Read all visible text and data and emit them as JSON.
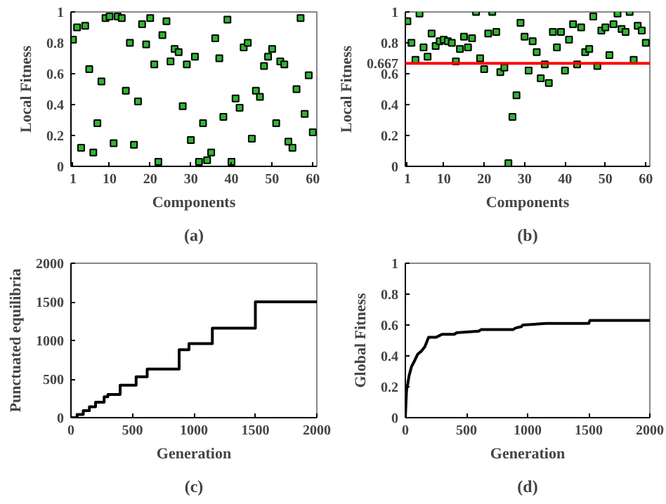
{
  "chart_data": [
    {
      "type": "scatter",
      "title": "(a)",
      "xlabel": "Components",
      "ylabel": "Local Fitness",
      "marker": "square",
      "grid": false,
      "xlim": [
        0.5,
        61
      ],
      "xticks": [
        1,
        10,
        20,
        30,
        40,
        50,
        60
      ],
      "ylim": [
        0,
        1
      ],
      "yticks": [
        0,
        0.2,
        0.4,
        0.6,
        0.8,
        1
      ],
      "x": [
        1,
        2,
        3,
        4,
        5,
        6,
        7,
        8,
        9,
        10,
        11,
        12,
        13,
        14,
        15,
        16,
        17,
        18,
        19,
        20,
        21,
        22,
        23,
        24,
        25,
        26,
        27,
        28,
        29,
        30,
        31,
        32,
        33,
        34,
        35,
        36,
        37,
        38,
        39,
        40,
        41,
        42,
        43,
        44,
        45,
        46,
        47,
        48,
        49,
        50,
        51,
        52,
        53,
        54,
        55,
        56,
        57,
        58,
        59,
        60
      ],
      "series": [
        {
          "color": "#2eb82e",
          "values": [
            0.82,
            0.9,
            0.12,
            0.91,
            0.63,
            0.09,
            0.28,
            0.55,
            0.96,
            0.97,
            0.15,
            0.97,
            0.96,
            0.49,
            0.8,
            0.14,
            0.42,
            0.92,
            0.79,
            0.96,
            0.66,
            0.03,
            0.85,
            0.94,
            0.68,
            0.76,
            0.74,
            0.39,
            0.66,
            0.17,
            0.71,
            0.03,
            0.28,
            0.04,
            0.09,
            0.83,
            0.7,
            0.32,
            0.95,
            0.03,
            0.44,
            0.38,
            0.77,
            0.8,
            0.18,
            0.49,
            0.45,
            0.65,
            0.71,
            0.76,
            0.28,
            0.68,
            0.66,
            0.16,
            0.12,
            0.5,
            0.96,
            0.34,
            0.59,
            0.22
          ]
        }
      ]
    },
    {
      "type": "scatter",
      "title": "(b)",
      "xlabel": "Components",
      "ylabel": "Local Fitness",
      "marker": "square",
      "grid": false,
      "xlim": [
        0.5,
        61
      ],
      "xticks": [
        1,
        10,
        20,
        30,
        40,
        50,
        60
      ],
      "ylim": [
        0,
        1
      ],
      "yticks": [
        0,
        0.2,
        0.4,
        0.6,
        0.667,
        0.8,
        1
      ],
      "x": [
        1,
        2,
        3,
        4,
        5,
        6,
        7,
        8,
        9,
        10,
        11,
        12,
        13,
        14,
        15,
        16,
        17,
        18,
        19,
        20,
        21,
        22,
        23,
        24,
        25,
        26,
        27,
        28,
        29,
        30,
        31,
        32,
        33,
        34,
        35,
        36,
        37,
        38,
        39,
        40,
        41,
        42,
        43,
        44,
        45,
        46,
        47,
        48,
        49,
        50,
        51,
        52,
        53,
        54,
        55,
        56,
        57,
        58,
        59,
        60
      ],
      "ref_lines": [
        {
          "axis": "y",
          "value": 0.667,
          "color": "#ff0000"
        }
      ],
      "series": [
        {
          "color": "#2eb82e",
          "values": [
            0.94,
            0.8,
            0.69,
            0.99,
            0.77,
            0.71,
            0.86,
            0.78,
            0.81,
            0.82,
            0.81,
            0.8,
            0.68,
            0.76,
            0.84,
            0.77,
            0.83,
            1.0,
            0.7,
            0.63,
            0.86,
            1.0,
            0.87,
            0.61,
            0.64,
            0.02,
            0.32,
            0.46,
            0.93,
            0.84,
            0.62,
            0.81,
            0.74,
            0.57,
            0.66,
            0.54,
            0.87,
            0.77,
            0.87,
            0.62,
            0.82,
            0.92,
            0.66,
            0.9,
            0.74,
            0.76,
            0.97,
            0.65,
            0.88,
            0.9,
            0.72,
            0.92,
            0.99,
            0.89,
            0.87,
            1.0,
            0.69,
            0.91,
            0.88,
            0.8
          ]
        }
      ]
    },
    {
      "type": "step",
      "title": "(c)",
      "xlabel": "Generation",
      "ylabel": "Punctuated equilibria",
      "grid": false,
      "xlim": [
        0,
        2000
      ],
      "xticks": [
        0,
        500,
        1000,
        1500,
        2000
      ],
      "ylim": [
        0,
        2000
      ],
      "yticks": [
        0,
        500,
        1000,
        1500,
        2000
      ],
      "x": [
        0,
        50,
        100,
        150,
        200,
        270,
        300,
        400,
        530,
        620,
        880,
        960,
        1150,
        1500,
        2000
      ],
      "series": [
        {
          "color": "#000000",
          "values": [
            0,
            40,
            90,
            140,
            200,
            270,
            300,
            420,
            530,
            630,
            880,
            960,
            1160,
            1500,
            1500
          ]
        }
      ]
    },
    {
      "type": "line",
      "title": "(d)",
      "xlabel": "Generation",
      "ylabel": "Global Fitness",
      "grid": false,
      "xlim": [
        0,
        2000
      ],
      "xticks": [
        0,
        500,
        1000,
        1500,
        2000
      ],
      "ylim": [
        0,
        1
      ],
      "yticks": [
        0,
        0.2,
        0.4,
        0.6,
        0.8,
        1
      ],
      "x": [
        0,
        5,
        10,
        20,
        30,
        50,
        70,
        100,
        130,
        160,
        190,
        250,
        300,
        400,
        420,
        600,
        620,
        880,
        900,
        950,
        960,
        1150,
        1500,
        1510,
        2000
      ],
      "series": [
        {
          "color": "#000000",
          "values": [
            0,
            0.1,
            0.18,
            0.22,
            0.27,
            0.33,
            0.36,
            0.41,
            0.43,
            0.46,
            0.52,
            0.52,
            0.54,
            0.54,
            0.55,
            0.56,
            0.57,
            0.57,
            0.58,
            0.59,
            0.6,
            0.61,
            0.61,
            0.63,
            0.63
          ]
        }
      ]
    }
  ]
}
